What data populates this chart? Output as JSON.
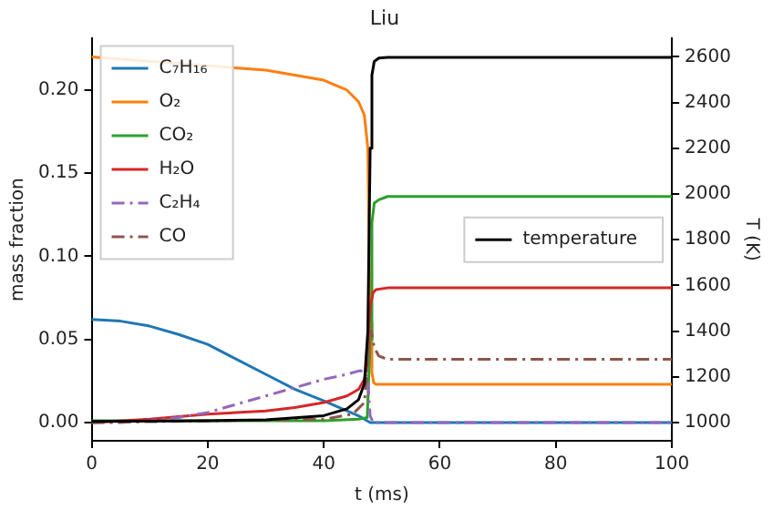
{
  "chart_data": {
    "type": "line",
    "title": "Liu",
    "xlabel": "t (ms)",
    "ylabel": "mass fraction",
    "y2label": "T (K)",
    "xlim": [
      0,
      100
    ],
    "xticks": [
      0,
      20,
      40,
      60,
      80,
      100
    ],
    "ylim": [
      -0.011,
      0.231
    ],
    "yticks": [
      {
        "value": 0,
        "label": "0.00"
      },
      {
        "value": 0.05,
        "label": "0.05"
      },
      {
        "value": 0.1,
        "label": "0.10"
      },
      {
        "value": 0.15,
        "label": "0.15"
      },
      {
        "value": 0.2,
        "label": "0.20"
      }
    ],
    "y2lim": [
      920,
      2680
    ],
    "y2ticks": [
      1000,
      1200,
      1400,
      1600,
      1800,
      2000,
      2200,
      2400,
      2600
    ],
    "legend": "top left",
    "grid": false,
    "marker": "none",
    "series": [
      {
        "name": "C₇H₁₆",
        "color": "#1f77b4",
        "x": [
          0,
          5,
          10,
          15,
          20,
          25,
          30,
          35,
          40,
          44,
          46,
          47,
          48,
          49,
          60,
          80,
          100
        ],
        "values": [
          0.062,
          0.061,
          0.058,
          0.053,
          0.047,
          0.038,
          0.029,
          0.02,
          0.013,
          0.007,
          0.004,
          0.002,
          0,
          0,
          0,
          0,
          0
        ]
      },
      {
        "name": "O₂",
        "color": "#ff7f0e",
        "x": [
          0,
          30,
          40,
          44,
          46,
          47,
          47.6,
          48,
          48.3,
          48.6,
          49,
          60,
          80,
          100
        ],
        "values": [
          0.22,
          0.212,
          0.206,
          0.2,
          0.193,
          0.185,
          0.165,
          0.06,
          0.03,
          0.024,
          0.023,
          0.023,
          0.023,
          0.023
        ]
      },
      {
        "name": "CO₂",
        "color": "#2ca02c",
        "x": [
          0,
          20,
          40,
          46,
          47.5,
          48,
          48.3,
          48.7,
          49.5,
          51,
          60,
          80,
          100
        ],
        "values": [
          0.001,
          0.001,
          0.001,
          0.002,
          0.003,
          0.05,
          0.12,
          0.132,
          0.134,
          0.136,
          0.136,
          0.136,
          0.136
        ]
      },
      {
        "name": "H₂O",
        "color": "#d62728",
        "x": [
          0,
          10,
          20,
          30,
          35,
          40,
          44,
          46,
          47,
          47.5,
          48,
          48.5,
          49,
          51,
          60,
          80,
          100
        ],
        "values": [
          0,
          0.002,
          0.005,
          0.007,
          0.009,
          0.012,
          0.016,
          0.02,
          0.026,
          0.035,
          0.07,
          0.078,
          0.08,
          0.081,
          0.081,
          0.081,
          0.081
        ]
      },
      {
        "name": "C₂H₄",
        "color": "#9467bd",
        "line_style": "dashed",
        "x": [
          0,
          5,
          10,
          15,
          20,
          25,
          30,
          35,
          40,
          44,
          46,
          47,
          47.6,
          48,
          48.5,
          60,
          80,
          100
        ],
        "values": [
          0,
          0,
          0.001,
          0.003,
          0.006,
          0.011,
          0.016,
          0.021,
          0.026,
          0.029,
          0.031,
          0.031,
          0.025,
          0.004,
          0,
          0,
          0,
          0
        ]
      },
      {
        "name": "CO",
        "color": "#8c564b",
        "line_style": "dashed",
        "x": [
          0,
          20,
          40,
          45,
          47,
          47.8,
          48.2,
          48.7,
          49.5,
          51,
          60,
          80,
          100
        ],
        "values": [
          0,
          0.001,
          0.002,
          0.005,
          0.012,
          0.045,
          0.055,
          0.045,
          0.04,
          0.038,
          0.038,
          0.038,
          0.038
        ]
      },
      {
        "name": "temperature",
        "color": "#000000",
        "axis": "y2",
        "x": [
          0,
          20,
          30,
          40,
          44,
          46,
          47,
          47.6,
          48,
          48.3,
          48.7,
          49.5,
          51,
          60,
          80,
          100
        ],
        "values": [
          1005,
          1008,
          1012,
          1030,
          1060,
          1100,
          1170,
          1400,
          2200,
          2520,
          2580,
          2595,
          2598,
          2598,
          2598,
          2598
        ]
      }
    ]
  }
}
